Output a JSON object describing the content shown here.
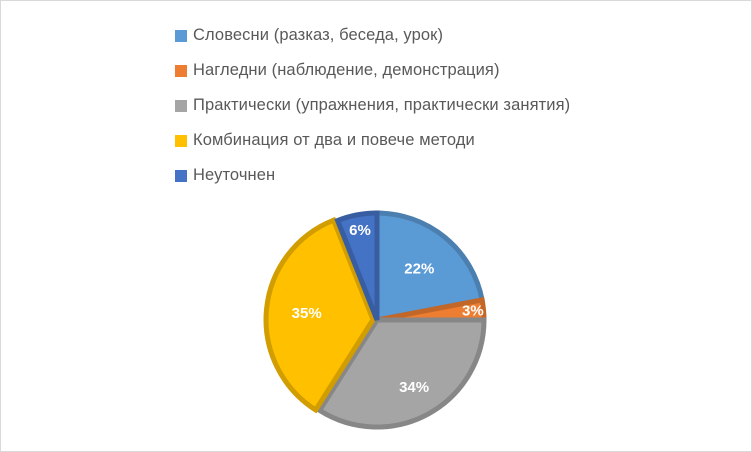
{
  "chart_data": {
    "type": "pie",
    "title": "",
    "legend_position": "top",
    "slices": [
      {
        "label": "Словесни (разказ, беседа, урок)",
        "value": 22,
        "value_label": "22%",
        "color": "#5b9bd5"
      },
      {
        "label": "Нагледни (наблюдение, демонстрация)",
        "value": 3,
        "value_label": "3%",
        "color": "#ed7d31"
      },
      {
        "label": "Практически (упражнения, практически занятия)",
        "value": 34,
        "value_label": "34%",
        "color": "#a5a5a5"
      },
      {
        "label": "Комбинация от два и повече методи",
        "value": 35,
        "value_label": "35%",
        "color": "#ffc000"
      },
      {
        "label": "Неуточнен",
        "value": 6,
        "value_label": "6%",
        "color": "#4472c4"
      }
    ]
  }
}
